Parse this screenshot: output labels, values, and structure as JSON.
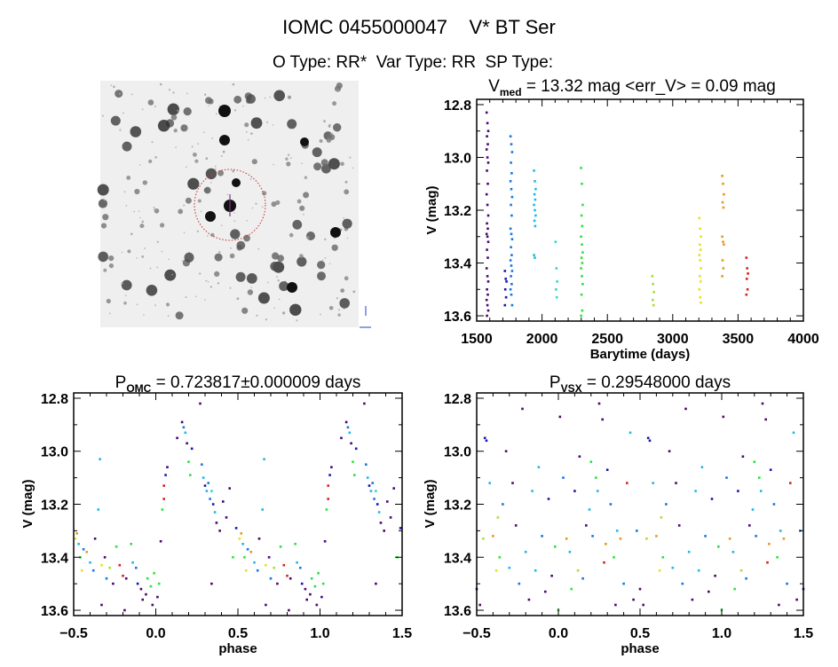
{
  "title": "IOMC 0455000047    V* BT Ser",
  "subtitle": "O Type: RR*  Var Type: RR  SP Type:",
  "palette": [
    "#4a0870",
    "#1818b0",
    "#1878e0",
    "#20b8e8",
    "#30d8c8",
    "#30e040",
    "#a8e030",
    "#e8e020",
    "#e89820",
    "#d82020"
  ],
  "chart_data": [
    {
      "type": "image",
      "description_label": "sky-finder-chart"
    },
    {
      "type": "scatter",
      "title_main": "V",
      "title_sub": "med",
      "title_rest": " = 13.32 mag <err_V> = 0.09 mag",
      "xlabel": "Barytime (days)",
      "ylabel": "V (mag)",
      "xlim": [
        1500,
        4000
      ],
      "ylim": [
        12.78,
        13.62
      ],
      "y_inverted": true,
      "xticks": [
        1500,
        2000,
        2500,
        3000,
        3500,
        4000
      ],
      "yticks": [
        12.8,
        13.0,
        13.2,
        13.4,
        13.6
      ],
      "seasons": [
        {
          "t": 1582,
          "c": 0,
          "mags": [
            12.83,
            12.87,
            12.9,
            12.92,
            12.95,
            12.97,
            13.0,
            13.02,
            13.05,
            13.1,
            13.14,
            13.18,
            13.22,
            13.25,
            13.27,
            13.29,
            13.3,
            13.32,
            13.35,
            13.38,
            13.42,
            13.45,
            13.47,
            13.5,
            13.52,
            13.54,
            13.56,
            13.58,
            13.6
          ]
        },
        {
          "t": 1722,
          "c": 1,
          "mags": [
            13.43,
            13.46,
            13.47,
            13.5,
            13.53,
            13.56
          ]
        },
        {
          "t": 1765,
          "c": 2,
          "mags": [
            12.92,
            12.95,
            12.98,
            13.02,
            13.06,
            13.09,
            13.12,
            13.15,
            13.18,
            13.22,
            13.27,
            13.29,
            13.31,
            13.34,
            13.37,
            13.39,
            13.41,
            13.43,
            13.45,
            13.48,
            13.5,
            13.52,
            13.56
          ]
        },
        {
          "t": 1945,
          "c": 3,
          "mags": [
            13.05,
            13.09,
            13.12,
            13.14,
            13.16,
            13.18,
            13.2,
            13.22,
            13.24,
            13.26,
            13.37,
            13.38
          ]
        },
        {
          "t": 2110,
          "c": 4,
          "mags": [
            13.32,
            13.42,
            13.47,
            13.5,
            13.53
          ]
        },
        {
          "t": 2305,
          "c": 5,
          "mags": [
            13.04,
            13.1,
            13.18,
            13.22,
            13.26,
            13.3,
            13.33,
            13.36,
            13.38,
            13.4,
            13.42,
            13.45,
            13.48,
            13.52,
            13.58,
            13.6
          ]
        },
        {
          "t": 2850,
          "c": 6,
          "mags": [
            13.45,
            13.48,
            13.51,
            13.54,
            13.56
          ]
        },
        {
          "t": 3210,
          "c": 7,
          "mags": [
            13.23,
            13.27,
            13.3,
            13.33,
            13.35,
            13.37,
            13.39,
            13.42,
            13.45,
            13.47,
            13.5,
            13.53,
            13.55
          ]
        },
        {
          "t": 3385,
          "c": 8,
          "mags": [
            13.07,
            13.1,
            13.14,
            13.17,
            13.19,
            13.3,
            13.32,
            13.33,
            13.39,
            13.42,
            13.45
          ]
        },
        {
          "t": 3570,
          "c": 9,
          "mags": [
            13.38,
            13.42,
            13.44,
            13.46,
            13.5,
            13.52
          ]
        }
      ]
    },
    {
      "type": "scatter",
      "title_main": "P",
      "title_sub": "OMC",
      "title_rest": " = 0.723817±0.000009 days",
      "xlabel": "phase",
      "ylabel": "V (mag)",
      "xlim": [
        -0.5,
        1.5
      ],
      "ylim": [
        12.78,
        13.62
      ],
      "y_inverted": true,
      "xticks": [
        "-0.5",
        "0.0",
        "0.5",
        "1.0",
        "1.5"
      ],
      "yticks": [
        12.8,
        13.0,
        13.2,
        13.4,
        13.6
      ],
      "points": [
        [
          0.01,
          13.55,
          0
        ],
        [
          0.02,
          13.5,
          5
        ],
        [
          0.03,
          13.34,
          0
        ],
        [
          0.04,
          13.22,
          5
        ],
        [
          0.05,
          13.18,
          9
        ],
        [
          0.05,
          13.13,
          9
        ],
        [
          0.06,
          13.09,
          1
        ],
        [
          0.07,
          13.06,
          0
        ],
        [
          0.13,
          12.95,
          0
        ],
        [
          0.16,
          12.89,
          0
        ],
        [
          0.17,
          12.91,
          2
        ],
        [
          0.18,
          12.93,
          3
        ],
        [
          0.19,
          12.97,
          0
        ],
        [
          0.2,
          13.04,
          5
        ],
        [
          0.21,
          13.09,
          5
        ],
        [
          0.22,
          12.99,
          1
        ],
        [
          0.27,
          12.82,
          0
        ],
        [
          0.28,
          13.05,
          2
        ],
        [
          0.29,
          13.1,
          3
        ],
        [
          0.3,
          13.13,
          1
        ],
        [
          0.31,
          13.15,
          3
        ],
        [
          0.32,
          13.12,
          2
        ],
        [
          0.33,
          13.18,
          2
        ],
        [
          0.34,
          13.15,
          4
        ],
        [
          0.35,
          13.2,
          1
        ],
        [
          0.36,
          13.23,
          3
        ],
        [
          0.37,
          13.27,
          0
        ],
        [
          0.39,
          13.3,
          0
        ],
        [
          0.41,
          13.19,
          0
        ],
        [
          0.43,
          13.25,
          0
        ],
        [
          0.45,
          13.14,
          0
        ],
        [
          0.49,
          13.29,
          1
        ],
        [
          0.51,
          13.33,
          7
        ],
        [
          0.52,
          13.31,
          8
        ],
        [
          0.53,
          13.35,
          3
        ],
        [
          0.54,
          13.4,
          5
        ],
        [
          0.55,
          13.45,
          7
        ],
        [
          0.56,
          13.37,
          2
        ],
        [
          0.58,
          13.38,
          8
        ],
        [
          0.6,
          13.42,
          3
        ],
        [
          0.62,
          13.45,
          2
        ],
        [
          0.63,
          13.33,
          0
        ],
        [
          0.65,
          13.22,
          3
        ],
        [
          0.66,
          13.03,
          3
        ],
        [
          0.67,
          13.43,
          7
        ],
        [
          0.69,
          13.4,
          0
        ],
        [
          0.7,
          13.48,
          2
        ],
        [
          0.72,
          13.44,
          6
        ],
        [
          0.74,
          13.5,
          0
        ],
        [
          0.76,
          13.36,
          5
        ],
        [
          0.78,
          13.43,
          9
        ],
        [
          0.8,
          13.47,
          9
        ],
        [
          0.82,
          13.48,
          0
        ],
        [
          0.85,
          13.35,
          5
        ],
        [
          0.86,
          13.42,
          3
        ],
        [
          0.88,
          13.44,
          2
        ],
        [
          0.89,
          13.5,
          1
        ],
        [
          0.91,
          13.52,
          0
        ],
        [
          0.92,
          13.56,
          0
        ],
        [
          0.94,
          13.54,
          0
        ],
        [
          0.95,
          13.48,
          5
        ],
        [
          0.97,
          13.51,
          5
        ],
        [
          0.98,
          13.58,
          0
        ],
        [
          0.99,
          13.46,
          5
        ],
        [
          0.67,
          13.58,
          0
        ],
        [
          0.81,
          13.6,
          0
        ],
        [
          0.34,
          13.5,
          0
        ],
        [
          0.47,
          13.4,
          5
        ]
      ]
    },
    {
      "type": "scatter",
      "title_main": "P",
      "title_sub": "VSX",
      "title_rest": " = 0.29548000 days",
      "xlabel": "phase",
      "ylabel": "V (mag)",
      "xlim": [
        -0.5,
        1.5
      ],
      "ylim": [
        12.78,
        13.62
      ],
      "y_inverted": true,
      "xticks": [
        "-0.5",
        "0.0",
        "0.5",
        "1.0",
        "1.5"
      ],
      "yticks": [
        12.8,
        13.0,
        13.2,
        13.4,
        13.6
      ],
      "points": [
        [
          0.01,
          12.87,
          0
        ],
        [
          0.03,
          13.1,
          2
        ],
        [
          0.05,
          13.33,
          8
        ],
        [
          0.07,
          13.38,
          3
        ],
        [
          0.08,
          13.52,
          5
        ],
        [
          0.1,
          13.15,
          1
        ],
        [
          0.12,
          13.45,
          6
        ],
        [
          0.13,
          13.02,
          0
        ],
        [
          0.15,
          13.48,
          2
        ],
        [
          0.17,
          13.28,
          0
        ],
        [
          0.19,
          13.22,
          3
        ],
        [
          0.2,
          13.04,
          5
        ],
        [
          0.21,
          13.32,
          2
        ],
        [
          0.23,
          13.1,
          5
        ],
        [
          0.24,
          13.15,
          3
        ],
        [
          0.25,
          12.82,
          0
        ],
        [
          0.27,
          12.88,
          0
        ],
        [
          0.28,
          13.42,
          9
        ],
        [
          0.29,
          13.35,
          8
        ],
        [
          0.3,
          13.07,
          1
        ],
        [
          0.32,
          13.2,
          2
        ],
        [
          0.34,
          13.4,
          5
        ],
        [
          0.36,
          13.3,
          3
        ],
        [
          0.38,
          13.33,
          8
        ],
        [
          0.4,
          13.5,
          2
        ],
        [
          0.42,
          13.12,
          9
        ],
        [
          0.44,
          12.93,
          3
        ],
        [
          0.46,
          13.56,
          0
        ],
        [
          0.48,
          13.3,
          2
        ],
        [
          0.5,
          13.52,
          0
        ],
        [
          0.52,
          13.58,
          0
        ],
        [
          0.54,
          13.33,
          6
        ],
        [
          0.56,
          12.96,
          1
        ],
        [
          0.58,
          13.12,
          3
        ],
        [
          0.6,
          13.32,
          8
        ],
        [
          0.62,
          13.45,
          7
        ],
        [
          0.64,
          13.4,
          5
        ],
        [
          0.66,
          13.2,
          2
        ],
        [
          0.68,
          13.0,
          0
        ],
        [
          0.7,
          13.44,
          3
        ],
        [
          0.72,
          13.12,
          0
        ],
        [
          0.74,
          13.28,
          0
        ],
        [
          0.76,
          13.5,
          2
        ],
        [
          0.78,
          12.84,
          0
        ],
        [
          0.8,
          13.38,
          3
        ],
        [
          0.82,
          13.56,
          0
        ],
        [
          0.84,
          13.15,
          3
        ],
        [
          0.86,
          13.45,
          3
        ],
        [
          0.88,
          13.06,
          3
        ],
        [
          0.9,
          13.32,
          2
        ],
        [
          0.92,
          13.53,
          0
        ],
        [
          0.94,
          13.18,
          1
        ],
        [
          0.96,
          13.47,
          0
        ],
        [
          0.98,
          13.36,
          5
        ],
        [
          0.0,
          13.6,
          5
        ],
        [
          0.55,
          12.95,
          1
        ],
        [
          0.63,
          13.25,
          6
        ],
        [
          0.35,
          13.58,
          0
        ]
      ]
    }
  ]
}
